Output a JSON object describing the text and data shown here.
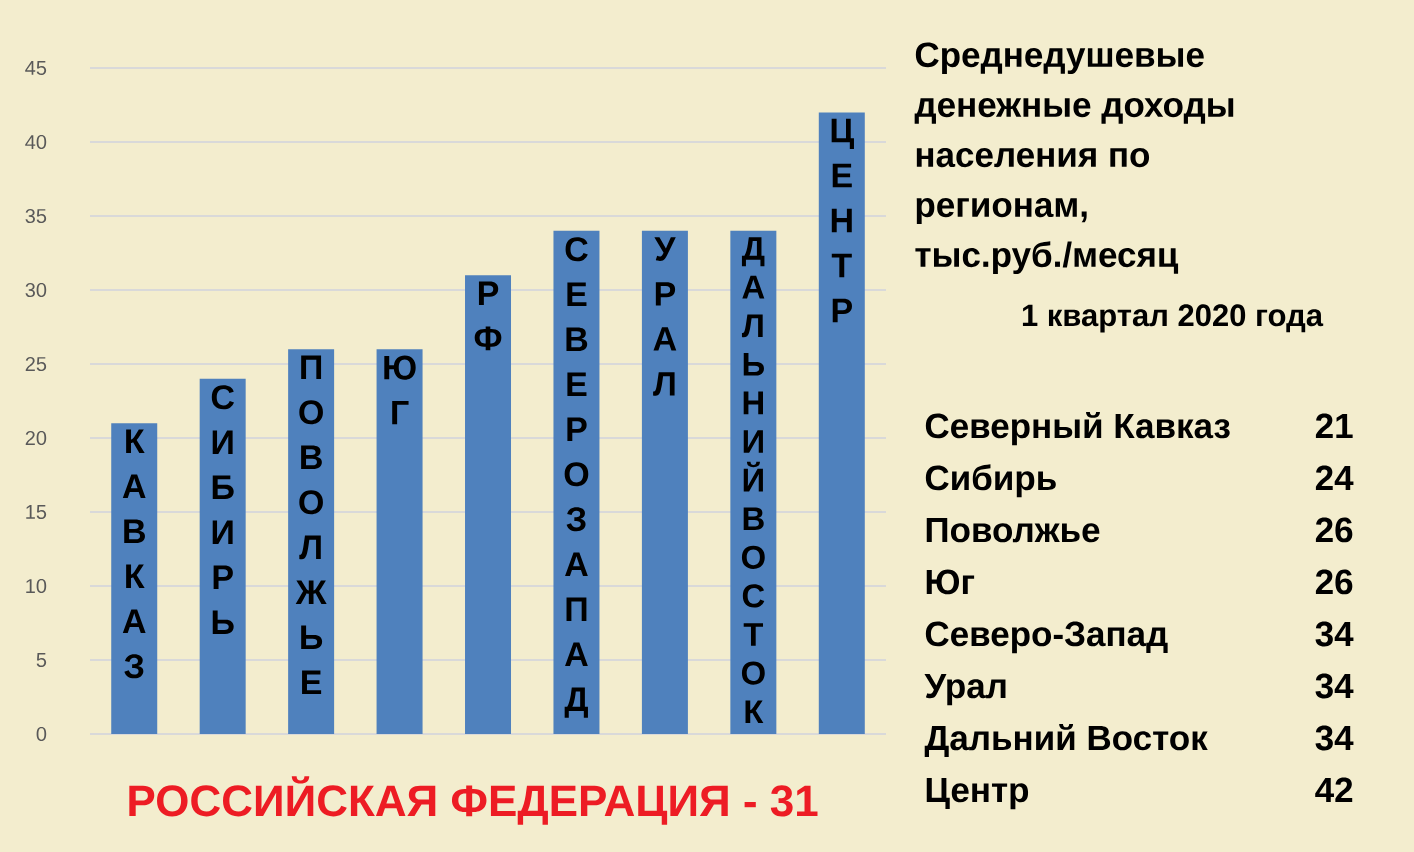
{
  "chart_data": {
    "type": "bar",
    "title": "Среднедушевые денежные доходы населения по регионам, тыс.руб./месяц",
    "subtitle": "1 квартал 2020 года",
    "categories": [
      "КАВКАЗ",
      "СИБИРЬ",
      "ПОВОЛЖЬЕ",
      "ЮГ",
      "РФ",
      "СЕВЕРОЗАПАД",
      "УРАЛ",
      "ДАЛЬНИЙ ВОСТОК",
      "ЦЕНТР"
    ],
    "values": [
      21,
      24,
      26,
      26,
      31,
      34,
      34,
      34,
      42
    ],
    "color": "#4f81bd",
    "ylim": [
      0,
      45
    ],
    "yticks": [
      0,
      5,
      10,
      15,
      20,
      25,
      30,
      35,
      40,
      45
    ],
    "grid": "y",
    "annotations": [
      "Северный Кавказ",
      "21",
      "Сибирь",
      "24",
      "Поволжье",
      "26",
      "Юг",
      "26",
      "Северо-Запад",
      "34",
      "Урал",
      "34",
      "Дальний Восток",
      "34",
      "Центр",
      "42",
      "РОССИЙСКАЯ ФЕДЕРАЦИЯ - 31"
    ]
  }
}
